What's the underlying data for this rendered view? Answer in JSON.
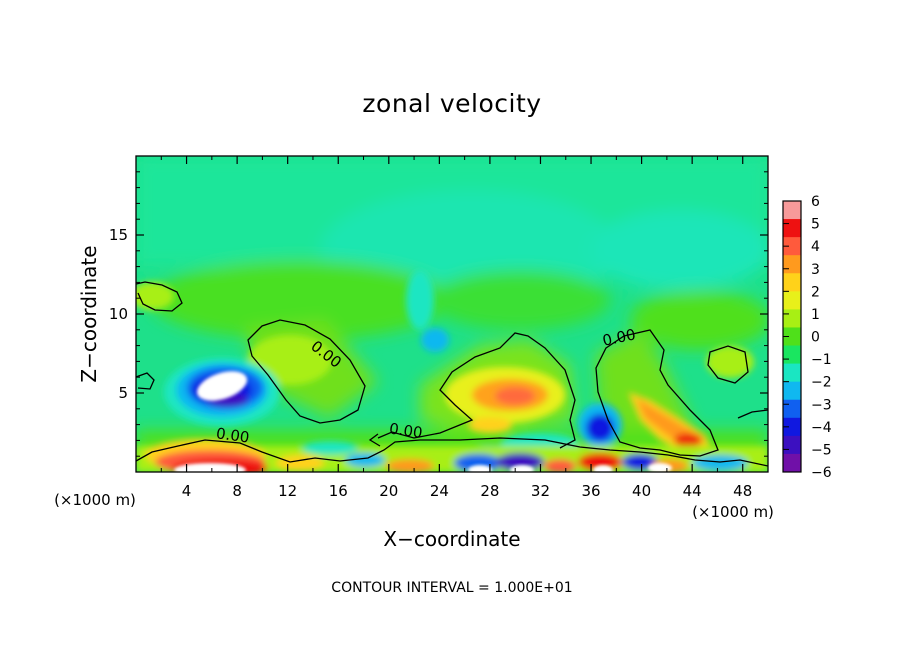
{
  "chart_data": {
    "type": "heatmap",
    "title": "zonal velocity",
    "xlabel": "X−coordinate",
    "ylabel": "Z−coordinate",
    "x_unit_left": "(×1000 m)",
    "x_unit_right": "(×1000 m)",
    "xlim": [
      0,
      50
    ],
    "ylim": [
      0,
      20
    ],
    "x_ticks": [
      {
        "value": 4,
        "label": "4"
      },
      {
        "value": 8,
        "label": "8"
      },
      {
        "value": 12,
        "label": "12"
      },
      {
        "value": 16,
        "label": "16"
      },
      {
        "value": 20,
        "label": "20"
      },
      {
        "value": 24,
        "label": "24"
      },
      {
        "value": 28,
        "label": "28"
      },
      {
        "value": 32,
        "label": "32"
      },
      {
        "value": 36,
        "label": "36"
      },
      {
        "value": 40,
        "label": "40"
      },
      {
        "value": 44,
        "label": "44"
      },
      {
        "value": 48,
        "label": "48"
      }
    ],
    "y_ticks": [
      {
        "value": 5,
        "label": "5"
      },
      {
        "value": 10,
        "label": "10"
      },
      {
        "value": 15,
        "label": "15"
      }
    ],
    "colorbar": {
      "min": -6,
      "max": 6,
      "labels": [
        "6",
        "5",
        "4",
        "3",
        "2",
        "1",
        "0",
        "−1",
        "−2",
        "−3",
        "−4",
        "−5",
        "−6"
      ],
      "bands": [
        "#f79a9a",
        "#ee1111",
        "#ff5a3c",
        "#ff9a1e",
        "#ffd21a",
        "#e8f01a",
        "#a8ef14",
        "#4fe01a",
        "#1ae660",
        "#1ae6c2",
        "#10b8f0",
        "#1060f0",
        "#1018e0",
        "#3c10c0",
        "#7010a8"
      ]
    },
    "contour_labels": [
      {
        "x": 14.8,
        "y": 7.2,
        "text": "0.00",
        "rotate": 38
      },
      {
        "x": 7.6,
        "y": 2.0,
        "text": "0.00",
        "rotate": 8
      },
      {
        "x": 21.3,
        "y": 2.3,
        "text": "0.00",
        "rotate": 8
      },
      {
        "x": 38.3,
        "y": 8.2,
        "text": "0.00",
        "rotate": -12
      }
    ],
    "features": [
      {
        "name": "westward jet core",
        "x": 6.5,
        "y": 5.5,
        "value": -5.5
      },
      {
        "name": "eastward jet core",
        "x": 29.5,
        "y": 4.8,
        "value": 2.6
      },
      {
        "name": "eastward streak",
        "x": 43.5,
        "y": 2.0,
        "value": 3.5
      },
      {
        "name": "westward core",
        "x": 36.5,
        "y": 3.0,
        "value": -4.8
      },
      {
        "name": "surface eastward",
        "x": 8.5,
        "y": 0.8,
        "value": 5.0
      },
      {
        "name": "upper weak westward",
        "x": 22.0,
        "y": 15.0,
        "value": -1.6
      },
      {
        "name": "mid weak westward",
        "x": 24.0,
        "y": 8.5,
        "value": -2.5
      }
    ],
    "contour_interval_text": "CONTOUR INTERVAL = 1.000E+01"
  }
}
